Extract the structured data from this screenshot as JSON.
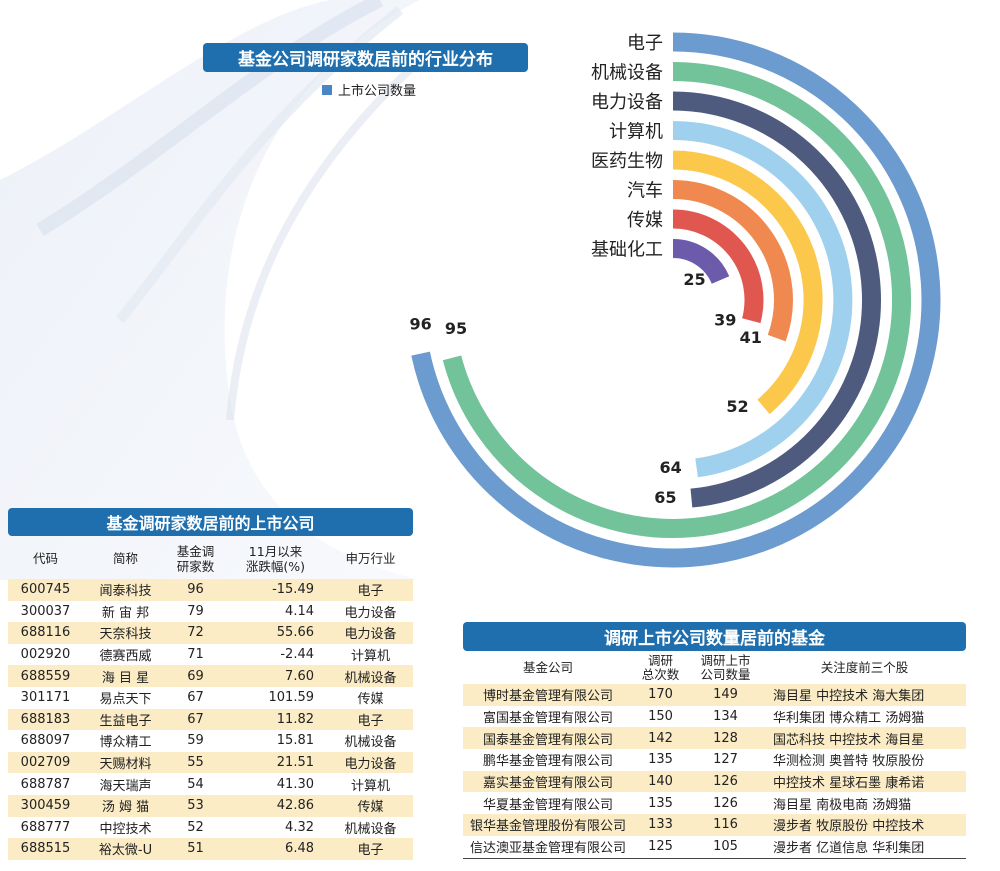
{
  "chart_data": {
    "type": "radial-bar",
    "title": "基金公司调研家数居前的行业分布",
    "legend": "上市公司数量",
    "categories": [
      "电子",
      "机械设备",
      "电力设备",
      "计算机",
      "医药生物",
      "汽车",
      "传媒",
      "基础化工"
    ],
    "values": [
      96,
      95,
      65,
      64,
      52,
      41,
      39,
      25
    ],
    "colors": [
      "#6c9bcf",
      "#72c29a",
      "#4f5b7e",
      "#9fd1ee",
      "#fcc84b",
      "#f0894f",
      "#e0574f",
      "#6c5bab"
    ]
  },
  "stocks": {
    "title": "基金调研家数居前的上市公司",
    "headers": [
      "代码",
      "简称",
      "基金调研家数",
      "11月以来涨跌幅(%)",
      "申万行业"
    ],
    "rows": [
      [
        "600745",
        "闻泰科技",
        "96",
        "-15.49",
        "电子"
      ],
      [
        "300037",
        "新 宙 邦",
        "79",
        "4.14",
        "电力设备"
      ],
      [
        "688116",
        "天奈科技",
        "72",
        "55.66",
        "电力设备"
      ],
      [
        "002920",
        "德赛西威",
        "71",
        "-2.44",
        "计算机"
      ],
      [
        "688559",
        "海 目 星",
        "69",
        "7.60",
        "机械设备"
      ],
      [
        "301171",
        "易点天下",
        "67",
        "101.59",
        "传媒"
      ],
      [
        "688183",
        "生益电子",
        "67",
        "11.82",
        "电子"
      ],
      [
        "688097",
        "博众精工",
        "59",
        "15.81",
        "机械设备"
      ],
      [
        "002709",
        "天赐材料",
        "55",
        "21.51",
        "电力设备"
      ],
      [
        "688787",
        "海天瑞声",
        "54",
        "41.30",
        "计算机"
      ],
      [
        "300459",
        "汤 姆 猫",
        "53",
        "42.86",
        "传媒"
      ],
      [
        "688777",
        "中控技术",
        "52",
        "4.32",
        "机械设备"
      ],
      [
        "688515",
        "裕太微-U",
        "51",
        "6.48",
        "电子"
      ]
    ]
  },
  "funds": {
    "title": "调研上市公司数量居前的基金",
    "headers": [
      "基金公司",
      "调研总次数",
      "调研上市公司数量",
      "关注度前三个股"
    ],
    "rows": [
      [
        "博时基金管理有限公司",
        "170",
        "149",
        "海目星  中控技术  海大集团"
      ],
      [
        "富国基金管理有限公司",
        "150",
        "134",
        "华利集团  博众精工  汤姆猫"
      ],
      [
        "国泰基金管理有限公司",
        "142",
        "128",
        "国芯科技  中控技术  海目星"
      ],
      [
        "鹏华基金管理有限公司",
        "135",
        "127",
        "华测检测  奥普特  牧原股份"
      ],
      [
        "嘉实基金管理有限公司",
        "140",
        "126",
        "中控技术  星球石墨  康希诺"
      ],
      [
        "华夏基金管理有限公司",
        "135",
        "126",
        "海目星    南极电商  汤姆猫"
      ],
      [
        "银华基金管理股份有限公司",
        "133",
        "116",
        "漫步者  牧原股份  中控技术"
      ],
      [
        "信达澳亚基金管理有限公司",
        "125",
        "105",
        "漫步者  亿道信息  华利集团"
      ]
    ]
  }
}
